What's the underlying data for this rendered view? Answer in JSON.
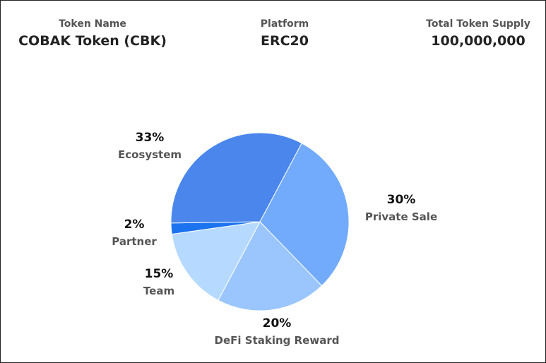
{
  "header": {
    "token_name_label": "Token Name",
    "token_name_value": "COBAK Token (CBK)",
    "platform_label": "Platform",
    "platform_value": "ERC20",
    "supply_label": "Total Token Supply",
    "supply_value": "100,000,000"
  },
  "chart_data": {
    "type": "pie",
    "title": "",
    "slices": [
      {
        "name": "Ecosystem",
        "value": 33,
        "label": "33%",
        "color": "#4a86ec"
      },
      {
        "name": "Private Sale",
        "value": 30,
        "label": "30%",
        "color": "#72abfb"
      },
      {
        "name": "DeFi Staking Reward",
        "value": 20,
        "label": "20%",
        "color": "#9ac6fd"
      },
      {
        "name": "Team",
        "value": 15,
        "label": "15%",
        "color": "#b6daff"
      },
      {
        "name": "Partner",
        "value": 2,
        "label": "2%",
        "color": "#1b73ef"
      }
    ]
  }
}
